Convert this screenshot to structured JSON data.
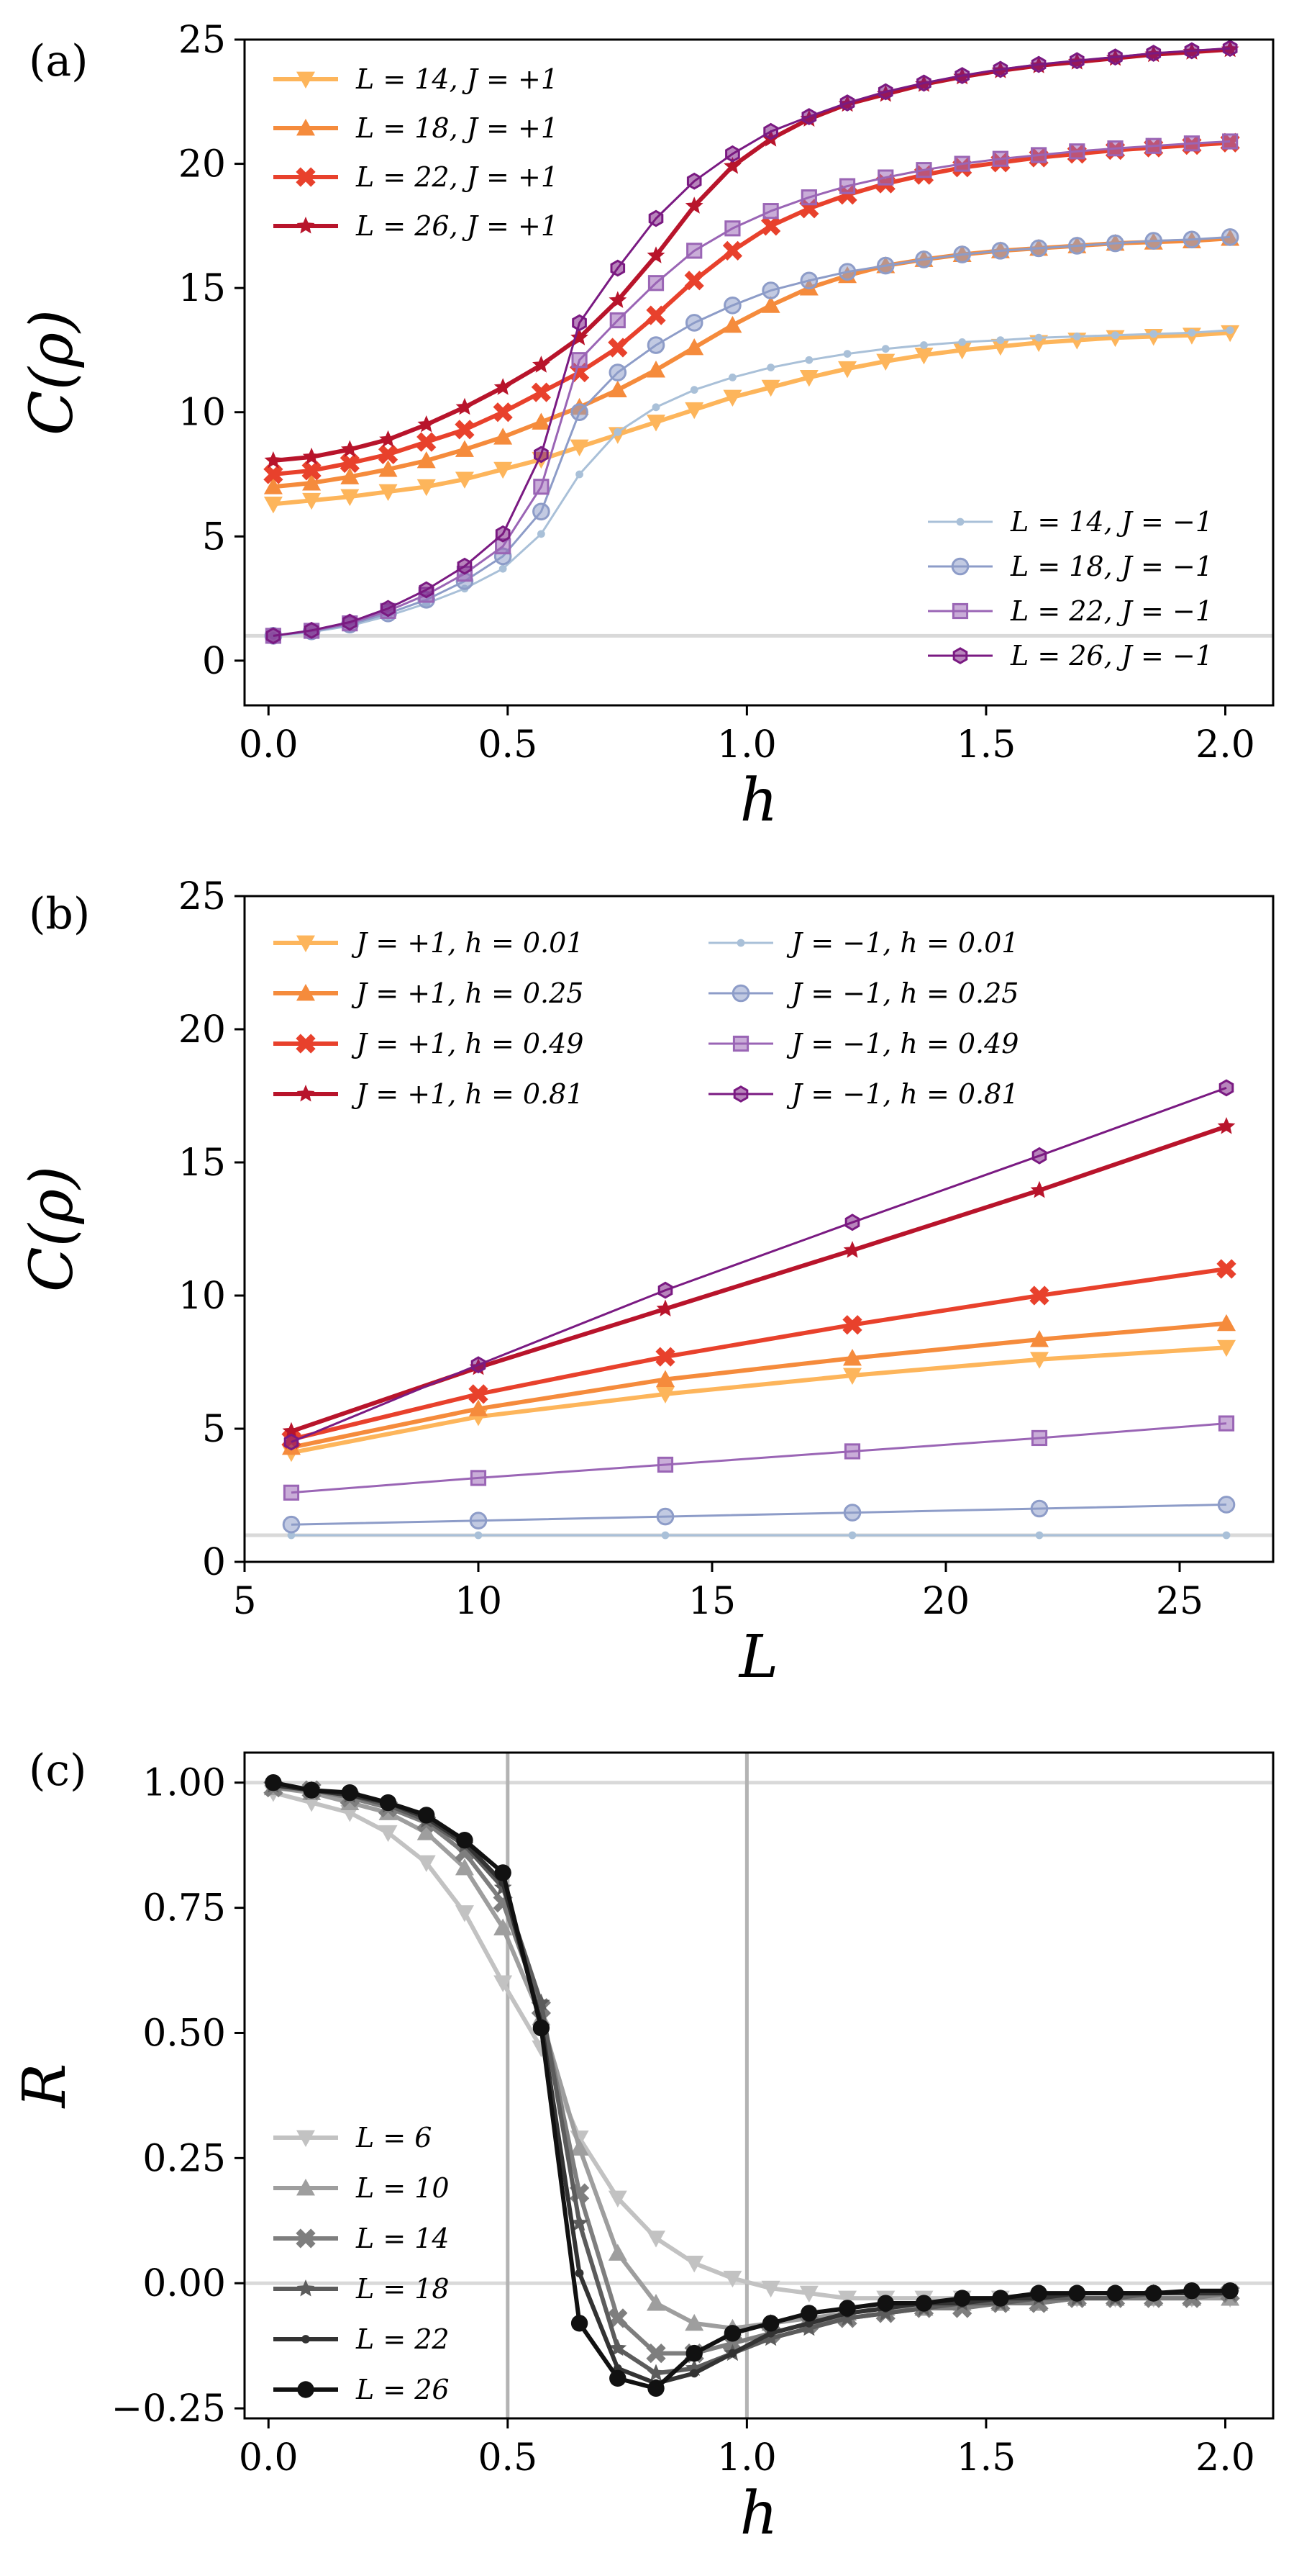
{
  "panels": [
    {
      "label": "(a)",
      "chart_data": {
        "type": "line",
        "xlabel": "h",
        "ylabel": "C(ρ)",
        "xlim": [
          -0.05,
          2.1
        ],
        "ylim": [
          -1.8,
          25
        ],
        "xticks": [
          "0.0",
          "0.5",
          "1.0",
          "1.5",
          "2.0"
        ],
        "xtick_values": [
          0,
          0.5,
          1,
          1.5,
          2
        ],
        "yticks": [
          "0",
          "5",
          "10",
          "15",
          "20",
          "25"
        ],
        "ytick_values": [
          0,
          5,
          10,
          15,
          20,
          25
        ],
        "reference_line_y": 1,
        "grid": false,
        "legend_left": {
          "placement": "top-left",
          "columns": 1,
          "entries": [
            0,
            1,
            2,
            3
          ]
        },
        "legend_right": {
          "placement": "lower-right",
          "columns": 1,
          "entries": [
            4,
            5,
            6,
            7
          ]
        },
        "x": [
          0.01,
          0.09,
          0.17,
          0.25,
          0.33,
          0.41,
          0.49,
          0.57,
          0.65,
          0.73,
          0.81,
          0.89,
          0.97,
          1.05,
          1.13,
          1.21,
          1.29,
          1.37,
          1.45,
          1.53,
          1.61,
          1.69,
          1.77,
          1.85,
          1.93,
          2.01
        ],
        "series": [
          {
            "name": "L = 14, J = +1",
            "color": "#fdb55b",
            "marker": "triangle-down",
            "width": 6,
            "values": [
              6.3,
              6.45,
              6.6,
              6.8,
              7.0,
              7.3,
              7.7,
              8.1,
              8.6,
              9.1,
              9.6,
              10.1,
              10.6,
              11.0,
              11.4,
              11.75,
              12.05,
              12.3,
              12.5,
              12.65,
              12.8,
              12.9,
              13.0,
              13.05,
              13.1,
              13.2
            ]
          },
          {
            "name": "L = 18, J = +1",
            "color": "#f58b3c",
            "marker": "triangle-up",
            "width": 6,
            "values": [
              7.0,
              7.15,
              7.4,
              7.7,
              8.05,
              8.5,
              9.0,
              9.6,
              10.2,
              10.9,
              11.7,
              12.6,
              13.5,
              14.3,
              15.0,
              15.5,
              15.9,
              16.15,
              16.35,
              16.5,
              16.6,
              16.7,
              16.8,
              16.85,
              16.9,
              17.0
            ]
          },
          {
            "name": "L = 22, J = +1",
            "color": "#e8412c",
            "marker": "x",
            "width": 6,
            "values": [
              7.5,
              7.65,
              7.95,
              8.3,
              8.8,
              9.3,
              10.0,
              10.8,
              11.6,
              12.6,
              13.9,
              15.3,
              16.5,
              17.5,
              18.2,
              18.75,
              19.2,
              19.55,
              19.85,
              20.05,
              20.25,
              20.4,
              20.55,
              20.65,
              20.75,
              20.85
            ]
          },
          {
            "name": "L = 26, J = +1",
            "color": "#b8142b",
            "marker": "star",
            "width": 6,
            "values": [
              8.05,
              8.2,
              8.5,
              8.9,
              9.5,
              10.2,
              11.0,
              11.9,
              13.0,
              14.5,
              16.3,
              18.3,
              19.9,
              21.0,
              21.8,
              22.4,
              22.8,
              23.2,
              23.5,
              23.75,
              23.95,
              24.1,
              24.25,
              24.4,
              24.5,
              24.6
            ]
          },
          {
            "name": "L = 14, J = −1",
            "color": "#a9c0d8",
            "marker": "point",
            "width": 3,
            "values": [
              1.0,
              1.15,
              1.4,
              1.8,
              2.3,
              2.9,
              3.7,
              5.1,
              7.5,
              9.2,
              10.2,
              10.9,
              11.4,
              11.8,
              12.1,
              12.35,
              12.55,
              12.7,
              12.82,
              12.9,
              13.0,
              13.05,
              13.1,
              13.15,
              13.2,
              13.3
            ]
          },
          {
            "name": "L = 18, J = −1",
            "color": "#8d9cc8",
            "marker": "circle",
            "width": 3,
            "values": [
              1.0,
              1.18,
              1.45,
              1.9,
              2.45,
              3.2,
              4.2,
              6.0,
              10.0,
              11.6,
              12.7,
              13.6,
              14.3,
              14.9,
              15.3,
              15.65,
              15.9,
              16.15,
              16.35,
              16.5,
              16.6,
              16.7,
              16.8,
              16.9,
              16.95,
              17.05
            ]
          },
          {
            "name": "L = 22, J = −1",
            "color": "#9a65b5",
            "marker": "square",
            "width": 3,
            "values": [
              1.0,
              1.2,
              1.5,
              2.0,
              2.65,
              3.5,
              4.6,
              7.0,
              12.1,
              13.7,
              15.2,
              16.5,
              17.4,
              18.1,
              18.65,
              19.1,
              19.45,
              19.75,
              20.0,
              20.2,
              20.35,
              20.5,
              20.62,
              20.72,
              20.82,
              20.9
            ]
          },
          {
            "name": "L = 26, J = −1",
            "color": "#7a1a82",
            "marker": "hexagon",
            "width": 3,
            "values": [
              1.0,
              1.22,
              1.55,
              2.1,
              2.85,
              3.8,
              5.1,
              8.3,
              13.6,
              15.8,
              17.8,
              19.3,
              20.4,
              21.3,
              21.9,
              22.45,
              22.9,
              23.25,
              23.55,
              23.8,
              24.0,
              24.15,
              24.3,
              24.45,
              24.55,
              24.65
            ]
          }
        ]
      }
    },
    {
      "label": "(b)",
      "chart_data": {
        "type": "line",
        "xlabel": "L",
        "ylabel": "C(ρ)",
        "xlim": [
          5,
          27
        ],
        "ylim": [
          0,
          25
        ],
        "xticks": [
          "5",
          "10",
          "15",
          "20",
          "25"
        ],
        "xtick_values": [
          5,
          10,
          15,
          20,
          25
        ],
        "yticks": [
          "0",
          "5",
          "10",
          "15",
          "20",
          "25"
        ],
        "ytick_values": [
          0,
          5,
          10,
          15,
          20,
          25
        ],
        "reference_line_y": 1,
        "grid": false,
        "legend_left": {
          "placement": "top-left",
          "columns": 1,
          "entries": [
            0,
            1,
            2,
            3
          ]
        },
        "legend_right": {
          "placement": "top-center",
          "columns": 1,
          "entries": [
            4,
            5,
            6,
            7
          ]
        },
        "x": [
          6,
          10,
          14,
          18,
          22,
          26
        ],
        "series": [
          {
            "name": "J = +1, h = 0.01",
            "color": "#fdb55b",
            "marker": "triangle-down",
            "width": 6,
            "values": [
              4.1,
              5.45,
              6.3,
              7.0,
              7.6,
              8.05
            ]
          },
          {
            "name": "J = +1, h = 0.25",
            "color": "#f58b3c",
            "marker": "triangle-up",
            "width": 6,
            "values": [
              4.3,
              5.75,
              6.85,
              7.65,
              8.35,
              8.95
            ]
          },
          {
            "name": "J = +1, h = 0.49",
            "color": "#e8412c",
            "marker": "x",
            "width": 6,
            "values": [
              4.6,
              6.3,
              7.7,
              8.9,
              10.0,
              11.0
            ]
          },
          {
            "name": "J = +1, h = 0.81",
            "color": "#b8142b",
            "marker": "star",
            "width": 6,
            "values": [
              4.9,
              7.3,
              9.5,
              11.7,
              13.95,
              16.35
            ]
          },
          {
            "name": "J = −1, h = 0.01",
            "color": "#a9c0d8",
            "marker": "point",
            "width": 3,
            "values": [
              1.0,
              1.0,
              1.0,
              1.0,
              1.0,
              1.0
            ]
          },
          {
            "name": "J = −1, h = 0.25",
            "color": "#8d9cc8",
            "marker": "circle",
            "width": 3,
            "values": [
              1.4,
              1.55,
              1.7,
              1.85,
              2.0,
              2.15
            ]
          },
          {
            "name": "J = −1, h = 0.49",
            "color": "#9a65b5",
            "marker": "square",
            "width": 3,
            "values": [
              2.6,
              3.15,
              3.65,
              4.15,
              4.65,
              5.2
            ]
          },
          {
            "name": "J = −1, h = 0.81",
            "color": "#7a1a82",
            "marker": "hexagon",
            "width": 3,
            "values": [
              4.5,
              7.4,
              10.2,
              12.75,
              15.25,
              17.8
            ]
          }
        ]
      }
    },
    {
      "label": "(c)",
      "chart_data": {
        "type": "line",
        "xlabel": "h",
        "ylabel": "R",
        "xlim": [
          -0.05,
          2.1
        ],
        "ylim": [
          -0.27,
          1.06
        ],
        "xticks": [
          "0.0",
          "0.5",
          "1.0",
          "1.5",
          "2.0"
        ],
        "xtick_values": [
          0,
          0.5,
          1,
          1.5,
          2
        ],
        "yticks": [
          "−0.25",
          "0.00",
          "0.25",
          "0.50",
          "0.75",
          "1.00"
        ],
        "ytick_values": [
          -0.25,
          0,
          0.25,
          0.5,
          0.75,
          1
        ],
        "reference_lines_y": [
          1,
          0
        ],
        "vertical_lines_x": [
          0.5,
          1.0
        ],
        "grid": false,
        "legend": {
          "placement": "center-left",
          "columns": 1,
          "entries": [
            0,
            1,
            2,
            3,
            4,
            5
          ]
        },
        "x": [
          0.01,
          0.09,
          0.17,
          0.25,
          0.33,
          0.41,
          0.49,
          0.57,
          0.65,
          0.73,
          0.81,
          0.89,
          0.97,
          1.05,
          1.13,
          1.21,
          1.29,
          1.37,
          1.45,
          1.53,
          1.61,
          1.69,
          1.77,
          1.85,
          1.93,
          2.01
        ],
        "series": [
          {
            "name": "L = 6",
            "color": "#c2c2c2",
            "marker": "triangle-down",
            "width": 6,
            "values": [
              0.98,
              0.96,
              0.94,
              0.9,
              0.84,
              0.74,
              0.6,
              0.47,
              0.29,
              0.17,
              0.09,
              0.04,
              0.01,
              -0.01,
              -0.02,
              -0.03,
              -0.03,
              -0.03,
              -0.03,
              -0.03,
              -0.03,
              -0.03,
              -0.03,
              -0.03,
              -0.03,
              -0.03
            ]
          },
          {
            "name": "L = 10",
            "color": "#9e9e9e",
            "marker": "triangle-up",
            "width": 6,
            "values": [
              0.99,
              0.98,
              0.96,
              0.94,
              0.9,
              0.83,
              0.71,
              0.53,
              0.27,
              0.06,
              -0.04,
              -0.08,
              -0.09,
              -0.08,
              -0.07,
              -0.06,
              -0.05,
              -0.05,
              -0.04,
              -0.04,
              -0.04,
              -0.03,
              -0.03,
              -0.03,
              -0.03,
              -0.03
            ]
          },
          {
            "name": "L = 14",
            "color": "#7e7e7e",
            "marker": "x",
            "width": 6,
            "values": [
              0.99,
              0.985,
              0.97,
              0.95,
              0.92,
              0.86,
              0.76,
              0.55,
              0.18,
              -0.07,
              -0.14,
              -0.14,
              -0.12,
              -0.1,
              -0.08,
              -0.07,
              -0.06,
              -0.05,
              -0.05,
              -0.04,
              -0.04,
              -0.03,
              -0.03,
              -0.03,
              -0.03,
              -0.02
            ]
          },
          {
            "name": "L = 18",
            "color": "#5c5c5c",
            "marker": "star",
            "width": 6,
            "values": [
              0.995,
              0.985,
              0.975,
              0.955,
              0.925,
              0.875,
              0.79,
              0.56,
              0.12,
              -0.13,
              -0.18,
              -0.17,
              -0.14,
              -0.11,
              -0.09,
              -0.07,
              -0.06,
              -0.05,
              -0.04,
              -0.04,
              -0.03,
              -0.03,
              -0.03,
              -0.02,
              -0.02,
              -0.02
            ]
          },
          {
            "name": "L = 22",
            "color": "#333333",
            "marker": "point",
            "width": 6,
            "values": [
              0.995,
              0.985,
              0.975,
              0.96,
              0.93,
              0.88,
              0.8,
              0.52,
              0.02,
              -0.17,
              -0.2,
              -0.18,
              -0.14,
              -0.1,
              -0.08,
              -0.06,
              -0.05,
              -0.04,
              -0.04,
              -0.03,
              -0.03,
              -0.02,
              -0.02,
              -0.02,
              -0.02,
              -0.02
            ]
          },
          {
            "name": "L = 26",
            "color": "#111111",
            "marker": "circle-filled",
            "width": 6,
            "values": [
              1.0,
              0.985,
              0.98,
              0.96,
              0.935,
              0.885,
              0.82,
              0.51,
              -0.08,
              -0.19,
              -0.21,
              -0.14,
              -0.1,
              -0.08,
              -0.06,
              -0.05,
              -0.04,
              -0.04,
              -0.03,
              -0.03,
              -0.02,
              -0.02,
              -0.02,
              -0.02,
              -0.015,
              -0.015
            ]
          }
        ]
      }
    }
  ]
}
